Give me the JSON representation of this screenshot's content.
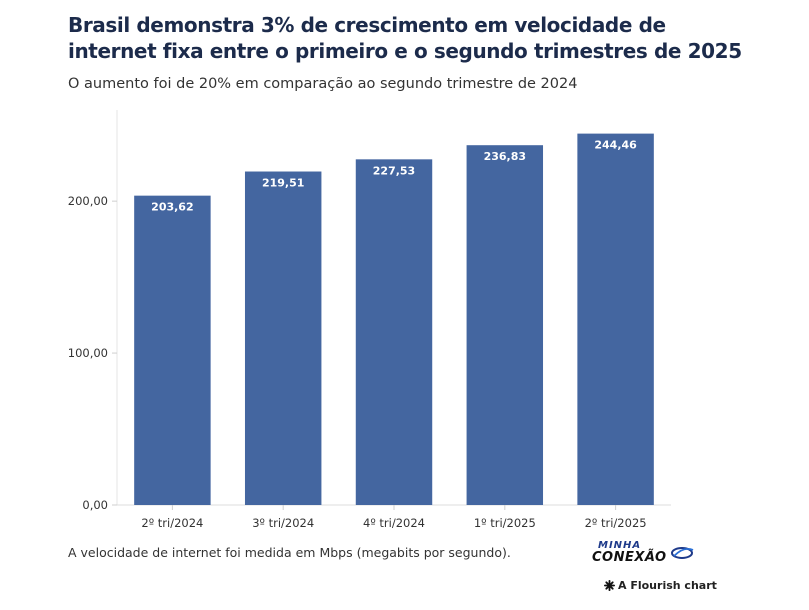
{
  "title": "Brasil demonstra 3% de crescimento em velocidade de internet fixa entre o primeiro e o segundo trimestres de 2025",
  "subtitle": "O aumento foi de 20% em comparação ao segundo trimestre de 2024",
  "footnote": "A velocidade de internet foi medida em Mbps (megabits por segundo).",
  "logo": {
    "line1": "MINHA",
    "line2": "CONEXÃO"
  },
  "credit": {
    "text": "A Flourish chart",
    "icon": "flourish-asterisk-icon"
  },
  "colors": {
    "bar": "#4466a0",
    "bar_label": "#ffffff",
    "axis_text": "#333333"
  },
  "chart_data": {
    "type": "bar",
    "categories": [
      "2º tri/2024",
      "3º tri/2024",
      "4º tri/2024",
      "1º tri/2025",
      "2º tri/2025"
    ],
    "values": [
      203.62,
      219.51,
      227.53,
      236.83,
      244.46
    ],
    "value_labels": [
      "203,62",
      "219,51",
      "227,53",
      "236,83",
      "244,46"
    ],
    "yticks": [
      0,
      100,
      200
    ],
    "ytick_labels": [
      "0,00",
      "100,00",
      "200,00"
    ],
    "ylim": [
      0,
      260
    ],
    "xlabel": "",
    "ylabel": "",
    "grid": false
  }
}
